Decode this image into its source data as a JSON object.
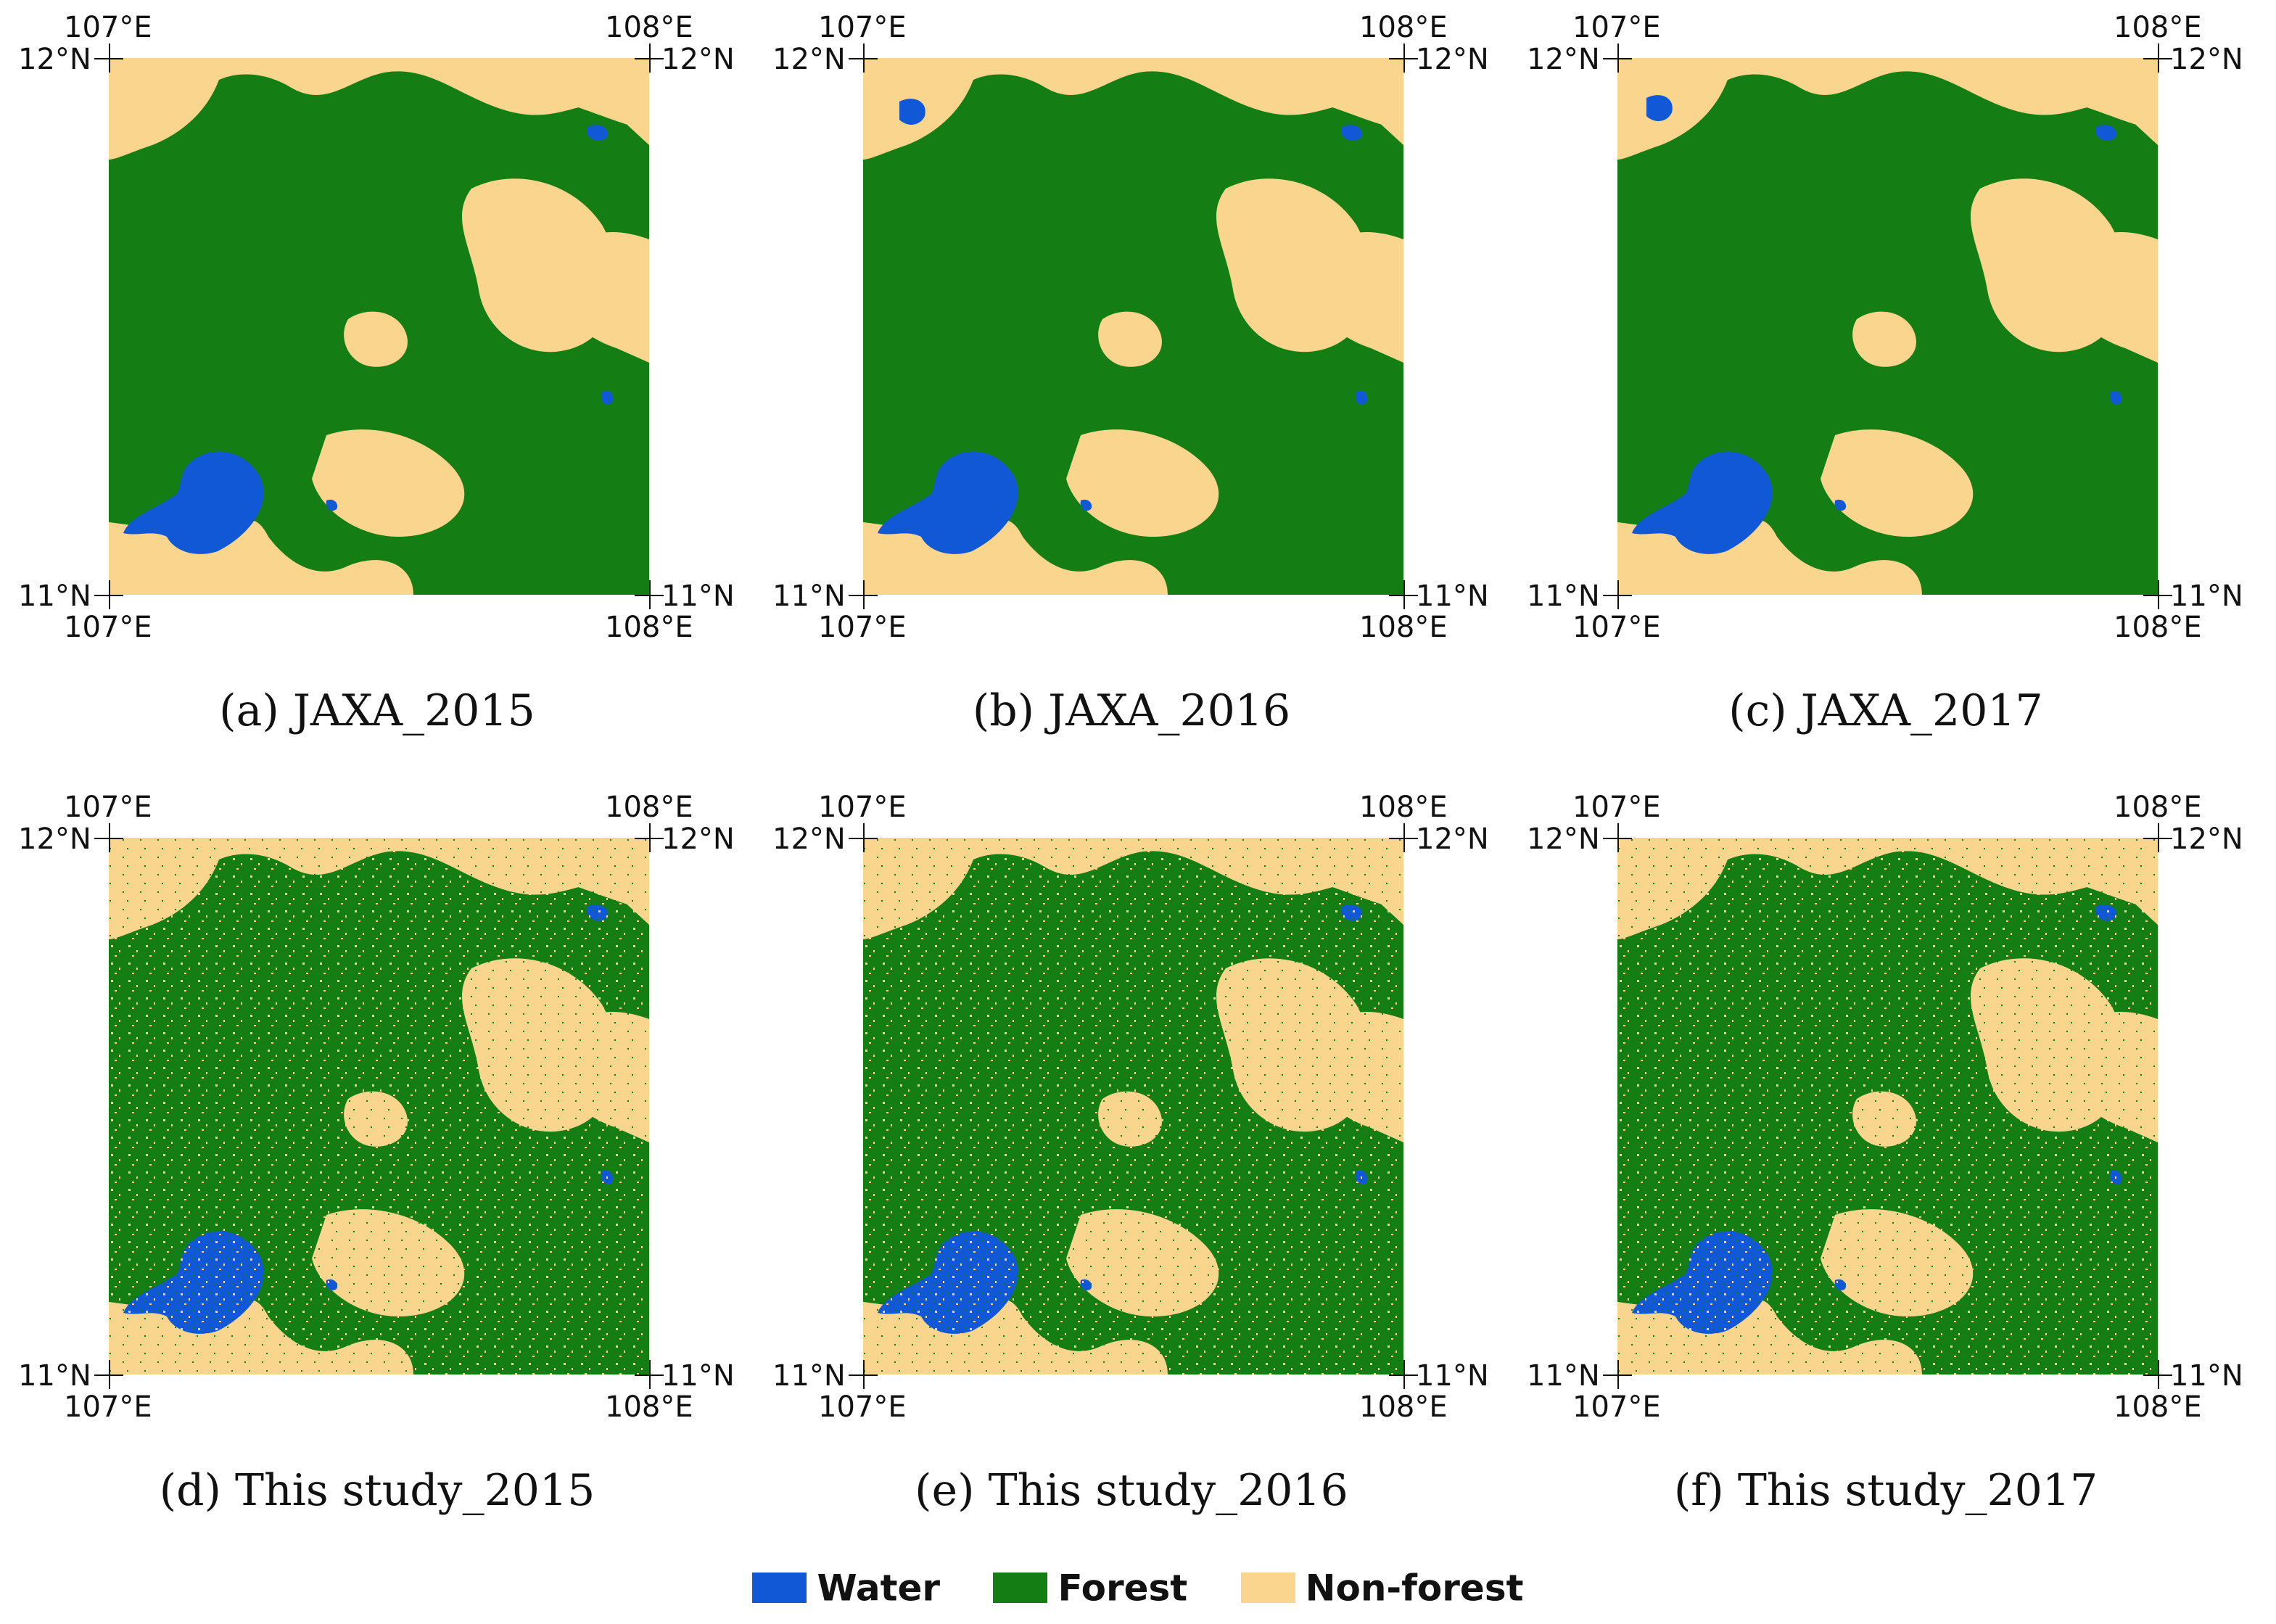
{
  "colors": {
    "water": "#1158d6",
    "forest": "#147d14",
    "nonforest": "#fad58e"
  },
  "panels": [
    {
      "caption": "(a) JAXA_2015",
      "lon_left": "107°E",
      "lon_right": "108°E",
      "lat_top": "12°N",
      "lat_bottom": "11°N"
    },
    {
      "caption": "(b) JAXA_2016",
      "lon_left": "107°E",
      "lon_right": "108°E",
      "lat_top": "12°N",
      "lat_bottom": "11°N"
    },
    {
      "caption": "(c) JAXA_2017",
      "lon_left": "107°E",
      "lon_right": "108°E",
      "lat_top": "12°N",
      "lat_bottom": "11°N"
    },
    {
      "caption": "(d) This study_2015",
      "lon_left": "107°E",
      "lon_right": "108°E",
      "lat_top": "12°N",
      "lat_bottom": "11°N"
    },
    {
      "caption": "(e) This study_2016",
      "lon_left": "107°E",
      "lon_right": "108°E",
      "lat_top": "12°N",
      "lat_bottom": "11°N"
    },
    {
      "caption": "(f) This study_2017",
      "lon_left": "107°E",
      "lon_right": "108°E",
      "lat_top": "12°N",
      "lat_bottom": "11°N"
    }
  ],
  "legend": [
    {
      "label": "Water",
      "color": "#1158d6"
    },
    {
      "label": "Forest",
      "color": "#147d14"
    },
    {
      "label": "Non-forest",
      "color": "#fad58e"
    }
  ]
}
